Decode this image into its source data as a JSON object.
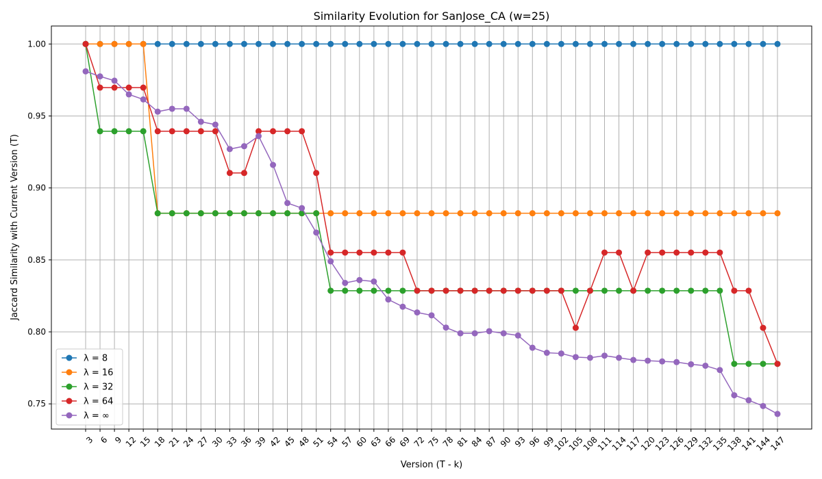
{
  "chart_data": {
    "type": "line",
    "title": "Similarity Evolution for SanJose_CA (w=25)",
    "xlabel": "Version (T - k)",
    "ylabel": "Jaccard Similarity with Current Version (T)",
    "x": [
      3,
      6,
      9,
      12,
      15,
      18,
      21,
      24,
      27,
      30,
      33,
      36,
      39,
      42,
      45,
      48,
      51,
      54,
      57,
      60,
      63,
      66,
      69,
      72,
      75,
      78,
      81,
      84,
      87,
      90,
      93,
      96,
      99,
      102,
      105,
      108,
      111,
      114,
      117,
      120,
      123,
      126,
      129,
      132,
      135,
      138,
      141,
      144,
      147
    ],
    "x_tick_labels": [
      "3",
      "6",
      "9",
      "12",
      "15",
      "18",
      "21",
      "24",
      "27",
      "30",
      "33",
      "36",
      "39",
      "42",
      "45",
      "48",
      "51",
      "54",
      "57",
      "60",
      "63",
      "66",
      "69",
      "72",
      "75",
      "78",
      "81",
      "84",
      "87",
      "90",
      "93",
      "96",
      "99",
      "102",
      "105",
      "108",
      "111",
      "114",
      "117",
      "120",
      "123",
      "126",
      "129",
      "132",
      "135",
      "138",
      "141",
      "144",
      "147"
    ],
    "ylim": [
      0.7325,
      1.0125
    ],
    "y_ticks": [
      0.75,
      0.8,
      0.85,
      0.9,
      0.95,
      1.0
    ],
    "y_tick_labels": [
      "0.75",
      "0.80",
      "0.85",
      "0.90",
      "0.95",
      "1.00"
    ],
    "grid": true,
    "legend_position": "lower-left",
    "series": [
      {
        "name": "λ = 8",
        "color": "#1f77b4",
        "values": [
          1,
          1,
          1,
          1,
          1,
          1,
          1,
          1,
          1,
          1,
          1,
          1,
          1,
          1,
          1,
          1,
          1,
          1,
          1,
          1,
          1,
          1,
          1,
          1,
          1,
          1,
          1,
          1,
          1,
          1,
          1,
          1,
          1,
          1,
          1,
          1,
          1,
          1,
          1,
          1,
          1,
          1,
          1,
          1,
          1,
          1,
          1,
          1,
          1
        ]
      },
      {
        "name": "λ = 16",
        "color": "#ff7f0e",
        "values": [
          1,
          1,
          1,
          1,
          1,
          0.8824,
          0.8824,
          0.8824,
          0.8824,
          0.8824,
          0.8824,
          0.8824,
          0.8824,
          0.8824,
          0.8824,
          0.8824,
          0.8824,
          0.8824,
          0.8824,
          0.8824,
          0.8824,
          0.8824,
          0.8824,
          0.8824,
          0.8824,
          0.8824,
          0.8824,
          0.8824,
          0.8824,
          0.8824,
          0.8824,
          0.8824,
          0.8824,
          0.8824,
          0.8824,
          0.8824,
          0.8824,
          0.8824,
          0.8824,
          0.8824,
          0.8824,
          0.8824,
          0.8824,
          0.8824,
          0.8824,
          0.8824,
          0.8824,
          0.8824,
          0.8824
        ]
      },
      {
        "name": "λ = 32",
        "color": "#2ca02c",
        "values": [
          1,
          0.9394,
          0.9394,
          0.9394,
          0.9394,
          0.8824,
          0.8824,
          0.8824,
          0.8824,
          0.8824,
          0.8824,
          0.8824,
          0.8824,
          0.8824,
          0.8824,
          0.8824,
          0.8824,
          0.8286,
          0.8286,
          0.8286,
          0.8286,
          0.8286,
          0.8286,
          0.8286,
          0.8286,
          0.8286,
          0.8286,
          0.8286,
          0.8286,
          0.8286,
          0.8286,
          0.8286,
          0.8286,
          0.8286,
          0.8286,
          0.8286,
          0.8286,
          0.8286,
          0.8286,
          0.8286,
          0.8286,
          0.8286,
          0.8286,
          0.8286,
          0.8286,
          0.7778,
          0.7778,
          0.7778,
          0.7778
        ]
      },
      {
        "name": "λ = 64",
        "color": "#d62728",
        "values": [
          1,
          0.9697,
          0.9697,
          0.9697,
          0.9697,
          0.9394,
          0.9394,
          0.9394,
          0.9394,
          0.9394,
          0.9104,
          0.9104,
          0.9394,
          0.9394,
          0.9394,
          0.9394,
          0.9104,
          0.8551,
          0.8551,
          0.8551,
          0.8551,
          0.8551,
          0.8551,
          0.8286,
          0.8286,
          0.8286,
          0.8286,
          0.8286,
          0.8286,
          0.8286,
          0.8286,
          0.8286,
          0.8286,
          0.8286,
          0.8028,
          0.8286,
          0.8551,
          0.8551,
          0.8286,
          0.8551,
          0.8551,
          0.8551,
          0.8551,
          0.8551,
          0.8551,
          0.8286,
          0.8286,
          0.8028,
          0.7778
        ]
      },
      {
        "name": "λ = ∞",
        "color": "#9467bd",
        "values": [
          0.981,
          0.9775,
          0.9745,
          0.965,
          0.9615,
          0.953,
          0.955,
          0.955,
          0.946,
          0.944,
          0.927,
          0.929,
          0.936,
          0.916,
          0.8895,
          0.886,
          0.869,
          0.849,
          0.834,
          0.836,
          0.835,
          0.8225,
          0.8175,
          0.8135,
          0.8115,
          0.803,
          0.799,
          0.799,
          0.8005,
          0.799,
          0.7975,
          0.789,
          0.7855,
          0.785,
          0.7825,
          0.782,
          0.7835,
          0.782,
          0.7805,
          0.78,
          0.7795,
          0.779,
          0.7775,
          0.7765,
          0.7735,
          0.756,
          0.7525,
          0.7485,
          0.743
        ]
      }
    ]
  }
}
